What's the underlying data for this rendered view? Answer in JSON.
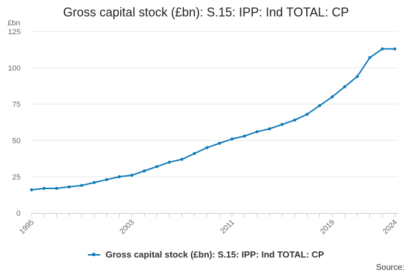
{
  "chart_data": {
    "type": "line",
    "title": "Gross capital stock (£bn): S.15: IPP: Ind TOTAL: CP",
    "ylabel": "£bn",
    "xlabel": "",
    "ylim": [
      0,
      125
    ],
    "xlim": [
      1995,
      2024
    ],
    "yticks": [
      0,
      25,
      50,
      75,
      100,
      125
    ],
    "xticks": [
      1995,
      2003,
      2011,
      2019,
      2024
    ],
    "grid": true,
    "legend_position": "bottom",
    "series": [
      {
        "name": "Gross capital stock (£bn): S.15: IPP: Ind TOTAL: CP",
        "color": "#0b77b8",
        "x": [
          1995,
          1996,
          1997,
          1998,
          1999,
          2000,
          2001,
          2002,
          2003,
          2004,
          2005,
          2006,
          2007,
          2008,
          2009,
          2010,
          2011,
          2012,
          2013,
          2014,
          2015,
          2016,
          2017,
          2018,
          2019,
          2020,
          2021,
          2022,
          2023,
          2024
        ],
        "values": [
          16,
          17,
          17,
          18,
          19,
          21,
          23,
          25,
          26,
          29,
          32,
          35,
          37,
          41,
          45,
          48,
          51,
          53,
          56,
          58,
          61,
          64,
          68,
          74,
          80,
          87,
          94,
          107,
          113,
          113
        ]
      }
    ]
  },
  "footer": {
    "source_label": "Source:"
  }
}
